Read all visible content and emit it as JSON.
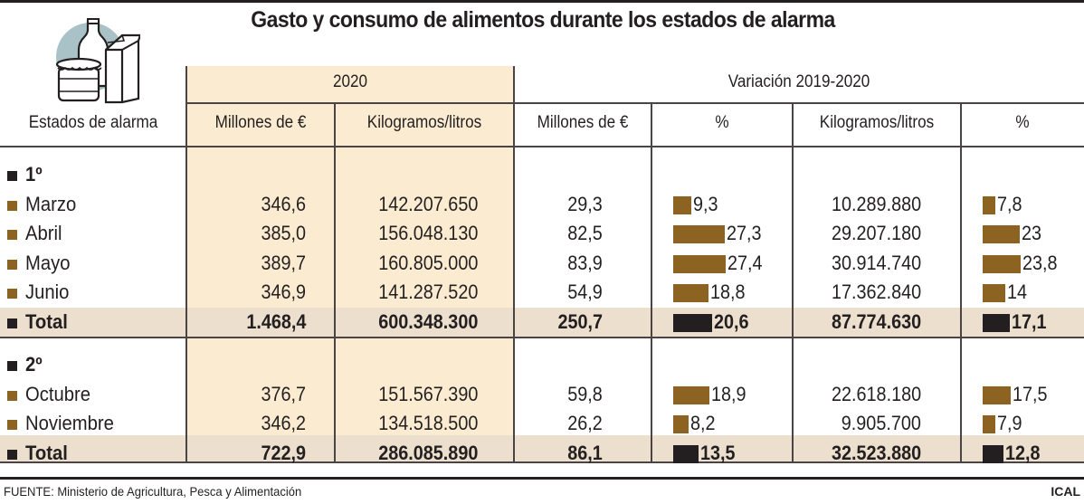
{
  "title": "Gasto y consumo de alimentos durante los estados de alarma",
  "icon": "groceries-icon",
  "colors": {
    "year_column_bg": "#fbecd1",
    "total_row_bg": "#ecdfcd",
    "month_bar": "#8c6321",
    "total_bar": "#231f20",
    "icon_circle": "#a9c2c8"
  },
  "header": {
    "row_label": "Estados de alarma",
    "group_2020": "2020",
    "group_variation": "Variación 2019-2020",
    "columns": [
      "Millones de €",
      "Kilogramos/litros",
      "Millones de €",
      "%",
      "Kilogramos/litros",
      "%"
    ]
  },
  "sections": [
    {
      "title": "1º",
      "rows": [
        {
          "label": "Marzo",
          "millones": "346,6",
          "kg": "142.207.650",
          "var_millones": "29,3",
          "var_millones_pct": "9,3",
          "var_kg": "10.289.880",
          "var_kg_pct": "7,8"
        },
        {
          "label": "Abril",
          "millones": "385,0",
          "kg": "156.048.130",
          "var_millones": "82,5",
          "var_millones_pct": "27,3",
          "var_kg": "29.207.180",
          "var_kg_pct": "23"
        },
        {
          "label": "Mayo",
          "millones": "389,7",
          "kg": "160.805.000",
          "var_millones": "83,9",
          "var_millones_pct": "27,4",
          "var_kg": "30.914.740",
          "var_kg_pct": "23,8"
        },
        {
          "label": "Junio",
          "millones": "346,9",
          "kg": "141.287.520",
          "var_millones": "54,9",
          "var_millones_pct": "18,8",
          "var_kg": "17.362.840",
          "var_kg_pct": "14"
        }
      ],
      "total": {
        "label": "Total",
        "millones": "1.468,4",
        "kg": "600.348.300",
        "var_millones": "250,7",
        "var_millones_pct": "20,6",
        "var_kg": "87.774.630",
        "var_kg_pct": "17,1"
      }
    },
    {
      "title": "2º",
      "rows": [
        {
          "label": "Octubre",
          "millones": "376,7",
          "kg": "151.567.390",
          "var_millones": "59,8",
          "var_millones_pct": "18,9",
          "var_kg": "22.618.180",
          "var_kg_pct": "17,5"
        },
        {
          "label": "Noviembre",
          "millones": "346,2",
          "kg": "134.518.500",
          "var_millones": "26,2",
          "var_millones_pct": "8,2",
          "var_kg": "9.905.700",
          "var_kg_pct": "7,9"
        }
      ],
      "total": {
        "label": "Total",
        "millones": "722,9",
        "kg": "286.085.890",
        "var_millones": "86,1",
        "var_millones_pct": "13,5",
        "var_kg": "32.523.880",
        "var_kg_pct": "12,8"
      }
    }
  ],
  "footer": {
    "source": "FUENTE: Ministerio de Agricultura, Pesca y Alimentación",
    "credit": "ICAL"
  },
  "chart_data": {
    "type": "table",
    "title": "Gasto y consumo de alimentos durante los estados de alarma",
    "columns": [
      "Estados de alarma",
      "2020 Millones de €",
      "2020 Kilogramos/litros",
      "Variación 2019-2020 Millones de €",
      "Variación 2019-2020 % (Millones)",
      "Variación 2019-2020 Kilogramos/litros",
      "Variación 2019-2020 % (Kg)"
    ],
    "rows": [
      [
        "1º Marzo",
        346.6,
        142207650,
        29.3,
        9.3,
        10289880,
        7.8
      ],
      [
        "1º Abril",
        385.0,
        156048130,
        82.5,
        27.3,
        29207180,
        23
      ],
      [
        "1º Mayo",
        389.7,
        160805000,
        83.9,
        27.4,
        30914740,
        23.8
      ],
      [
        "1º Junio",
        346.9,
        141287520,
        54.9,
        18.8,
        17362840,
        14
      ],
      [
        "1º Total",
        1468.4,
        600348300,
        250.7,
        20.6,
        87774630,
        17.1
      ],
      [
        "2º Octubre",
        376.7,
        151567390,
        59.8,
        18.9,
        22618180,
        17.5
      ],
      [
        "2º Noviembre",
        346.2,
        134518500,
        26.2,
        8.2,
        9905700,
        7.9
      ],
      [
        "2º Total",
        722.9,
        286085890,
        86.1,
        13.5,
        32523880,
        12.8
      ]
    ],
    "bar_series": [
      {
        "name": "% Millones de €",
        "values": [
          9.3,
          27.3,
          27.4,
          18.8,
          20.6,
          18.9,
          8.2,
          13.5
        ]
      },
      {
        "name": "% Kilogramos/litros",
        "values": [
          7.8,
          23,
          23.8,
          14,
          17.1,
          17.5,
          7.9,
          12.8
        ]
      }
    ]
  }
}
